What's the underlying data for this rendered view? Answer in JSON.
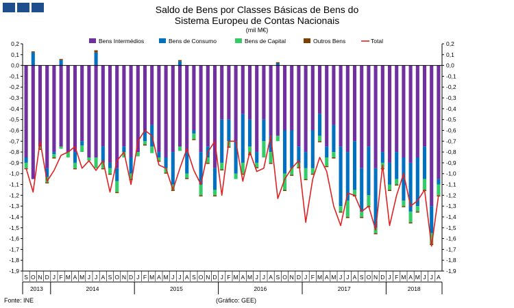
{
  "chart_data": {
    "type": "bar",
    "title": "Saldo de Bens por Classes Básicas de Bens do",
    "title_line2": "Sistema Europeu de Contas Nacionais",
    "unit": "(mil M€)",
    "source": "Fonte: INE",
    "credit": "(Gráfico: GEE)",
    "stacked": true,
    "ylim": [
      -1.9,
      0.2
    ],
    "yticks": [
      "0,2",
      "0,1",
      "0,0",
      "-0,1",
      "-0,2",
      "-0,3",
      "-0,4",
      "-0,5",
      "-0,6",
      "-0,7",
      "-0,8",
      "-0,9",
      "-1,0",
      "-1,1",
      "-1,2",
      "-1,3",
      "-1,4",
      "-1,5",
      "-1,6",
      "-1,7",
      "-1,8",
      "-1,9"
    ],
    "grid": false,
    "legend_position": "top",
    "categories": [
      "S",
      "O",
      "N",
      "D",
      "J",
      "F",
      "M",
      "A",
      "M",
      "J",
      "J",
      "A",
      "S",
      "O",
      "N",
      "D",
      "J",
      "F",
      "M",
      "A",
      "M",
      "J",
      "J",
      "A",
      "S",
      "O",
      "N",
      "D",
      "J",
      "F",
      "M",
      "A",
      "M",
      "J",
      "J",
      "A",
      "S",
      "O",
      "N",
      "D",
      "J",
      "F",
      "M",
      "A",
      "M",
      "J",
      "J",
      "A",
      "S",
      "O",
      "N",
      "D",
      "J",
      "F",
      "M",
      "A",
      "M",
      "J",
      "J",
      "A"
    ],
    "years": [
      {
        "label": "2013",
        "start": 0,
        "count": 4
      },
      {
        "label": "2014",
        "start": 4,
        "count": 12
      },
      {
        "label": "2015",
        "start": 16,
        "count": 12
      },
      {
        "label": "2016",
        "start": 28,
        "count": 12
      },
      {
        "label": "2017",
        "start": 40,
        "count": 12
      },
      {
        "label": "2018",
        "start": 52,
        "count": 8
      }
    ],
    "series": [
      {
        "name": "Bens Intermédios",
        "type": "bar",
        "color": "#7030a0",
        "values": [
          -0.85,
          -1.05,
          -0.75,
          -0.95,
          -0.8,
          -0.75,
          -0.8,
          -0.8,
          -0.7,
          -0.85,
          -0.85,
          -0.75,
          -0.9,
          -0.95,
          -0.75,
          -0.85,
          -0.8,
          -0.6,
          -0.55,
          -0.8,
          -0.85,
          -0.8,
          -0.75,
          -0.8,
          -0.6,
          -0.8,
          -0.75,
          -0.95,
          -0.5,
          -0.5,
          -0.7,
          -0.45,
          -0.5,
          -0.8,
          -0.5,
          -0.65,
          -0.65,
          -0.6,
          -0.6,
          -0.75,
          -0.8,
          -0.6,
          -0.45,
          -0.75,
          -0.55,
          -0.75,
          -0.8,
          -0.7,
          -0.95,
          -0.75,
          -0.95,
          -0.8,
          -0.9,
          -0.8,
          -0.85,
          -0.9,
          -0.85,
          -0.75,
          -1.3,
          -1.05
        ]
      },
      {
        "name": "Bens de Consumo",
        "type": "bar",
        "color": "#0070c0",
        "values": [
          -0.05,
          0.12,
          0.0,
          -0.08,
          -0.02,
          0.05,
          0.0,
          -0.1,
          -0.04,
          0.0,
          0.12,
          -0.15,
          -0.05,
          -0.12,
          -0.05,
          -0.15,
          0.0,
          -0.1,
          -0.2,
          -0.05,
          -0.1,
          -0.3,
          0.04,
          -0.2,
          -0.03,
          -0.3,
          -0.1,
          -0.2,
          -0.4,
          -0.2,
          -0.3,
          -0.45,
          -0.25,
          -0.1,
          -0.2,
          -0.15,
          0.02,
          -0.4,
          -0.35,
          -0.15,
          -0.15,
          -0.35,
          -0.2,
          -0.1,
          -0.25,
          -0.55,
          -0.45,
          -0.45,
          -0.4,
          -0.45,
          -0.55,
          -0.1,
          -0.2,
          -0.25,
          -0.4,
          -0.45,
          -0.45,
          -0.3,
          -0.25,
          -0.05
        ]
      },
      {
        "name": "Bens de Capital",
        "type": "bar",
        "color": "#33cc66",
        "values": [
          -0.05,
          0.0,
          -0.02,
          -0.05,
          -0.03,
          -0.02,
          -0.05,
          -0.05,
          -0.06,
          -0.03,
          -0.1,
          -0.05,
          -0.05,
          -0.1,
          -0.05,
          -0.05,
          -0.04,
          -0.03,
          -0.06,
          -0.03,
          -0.04,
          -0.05,
          -0.04,
          -0.04,
          -0.05,
          -0.1,
          -0.05,
          -0.05,
          -0.06,
          -0.05,
          -0.05,
          -0.1,
          -0.07,
          -0.04,
          -0.15,
          -0.1,
          -0.05,
          -0.15,
          -0.06,
          -0.04,
          -0.1,
          -0.05,
          -0.05,
          -0.08,
          -0.05,
          -0.05,
          -0.15,
          -0.05,
          -0.05,
          -0.1,
          -0.05,
          -0.05,
          -0.05,
          -0.05,
          -0.05,
          -0.1,
          -0.05,
          -0.1,
          -0.1,
          -0.1
        ]
      },
      {
        "name": "Outros Bens",
        "type": "bar",
        "color": "#7f3f00",
        "values": [
          -0.01,
          0.01,
          -0.01,
          -0.01,
          -0.01,
          0.01,
          0.0,
          -0.01,
          0.0,
          0.0,
          0.02,
          -0.01,
          -0.01,
          -0.01,
          0.0,
          -0.01,
          0.0,
          -0.01,
          0.0,
          -0.01,
          -0.01,
          -0.01,
          0.01,
          -0.01,
          -0.01,
          -0.01,
          -0.01,
          -0.01,
          -0.01,
          -0.01,
          0.0,
          -0.01,
          -0.01,
          -0.01,
          0.0,
          -0.01,
          0.01,
          -0.01,
          -0.01,
          -0.01,
          -0.01,
          -0.01,
          -0.01,
          -0.01,
          -0.01,
          -0.01,
          -0.01,
          -0.01,
          -0.01,
          -0.01,
          -0.01,
          -0.01,
          -0.01,
          -0.01,
          -0.01,
          -0.01,
          -0.01,
          -0.01,
          -0.01,
          -0.01
        ]
      },
      {
        "name": "Total",
        "type": "line",
        "color": "#e02020",
        "values": [
          -0.95,
          -1.17,
          -0.7,
          -1.07,
          -0.97,
          -0.83,
          -0.8,
          -0.75,
          -0.95,
          -0.88,
          -0.97,
          -0.88,
          -1.17,
          -0.88,
          -0.8,
          -1.1,
          -0.7,
          -0.6,
          -0.65,
          -0.92,
          -0.95,
          -1.15,
          -0.95,
          -0.77,
          -0.97,
          -1.1,
          -0.8,
          -0.7,
          -1.2,
          -0.7,
          -0.7,
          -1.07,
          -0.8,
          -0.98,
          -0.95,
          -0.65,
          -1.23,
          -1.05,
          -0.95,
          -0.88,
          -1.45,
          -1.05,
          -0.85,
          -0.98,
          -1.3,
          -1.48,
          -1.18,
          -1.2,
          -1.35,
          -1.3,
          -1.52,
          -0.92,
          -1.48,
          -1.2,
          -1.0,
          -1.3,
          -1.25,
          -1.15,
          -1.67,
          -1.2
        ]
      }
    ]
  }
}
